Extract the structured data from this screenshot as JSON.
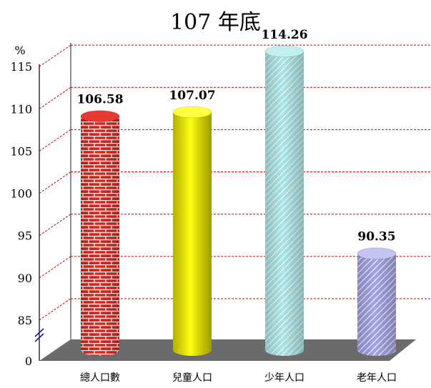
{
  "chart_data": {
    "type": "bar",
    "title": "107 年底",
    "ylabel": "%",
    "categories": [
      "總人口數",
      "兒童人口",
      "少年人口",
      "老年人口"
    ],
    "values": [
      106.58,
      107.07,
      114.26,
      90.35
    ],
    "value_labels": [
      "106.58",
      "107.07",
      "114.26",
      "90.35"
    ],
    "ylim": [
      80,
      115
    ],
    "yticks": [
      0,
      85,
      90,
      95,
      100,
      105,
      110,
      115
    ],
    "axis_break": true,
    "grid": true,
    "bar_colors": [
      "#e02020",
      "#ffff00",
      "#a8e8e8",
      "#b8b8ee"
    ],
    "bar_patterns": [
      "brick",
      "solid",
      "diagonal",
      "diagonal"
    ]
  }
}
